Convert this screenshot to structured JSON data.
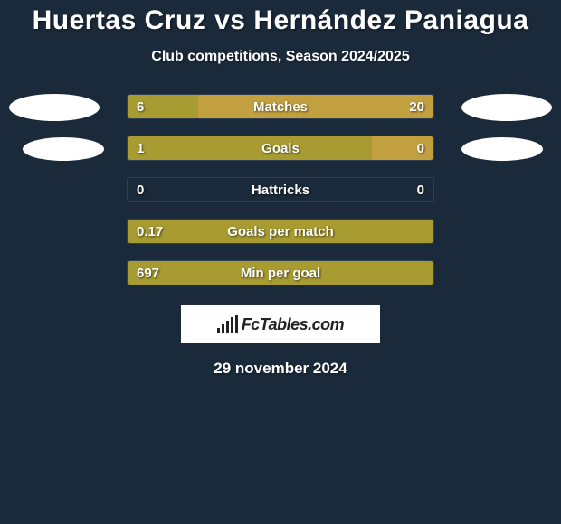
{
  "title": "Huertas Cruz vs Hernández Paniagua",
  "subtitle": "Club competitions, Season 2024/2025",
  "footer_date": "29 november 2024",
  "logo_text": "FcTables.com",
  "colors": {
    "background": "#1a2a3a",
    "bar_player1": "#a89b32",
    "bar_player2": "#c29f3f",
    "ellipse": "#ffffff",
    "text": "#ffffff"
  },
  "stat_rows": [
    {
      "label": "Matches",
      "left_val": "6",
      "right_val": "20",
      "left_pct": 23,
      "right_pct": 77,
      "left_color": "#a89b32",
      "right_color": "#c29f3f",
      "show_right_val": true
    },
    {
      "label": "Goals",
      "left_val": "1",
      "right_val": "0",
      "left_pct": 80,
      "right_pct": 20,
      "left_color": "#a89b32",
      "right_color": "#c29f3f",
      "show_right_val": true
    },
    {
      "label": "Hattricks",
      "left_val": "0",
      "right_val": "0",
      "left_pct": 0,
      "right_pct": 0,
      "left_color": "#a89b32",
      "right_color": "#c29f3f",
      "show_right_val": true
    },
    {
      "label": "Goals per match",
      "left_val": "0.17",
      "right_val": "",
      "left_pct": 100,
      "right_pct": 0,
      "left_color": "#a89b32",
      "right_color": "#c29f3f",
      "show_right_val": false
    },
    {
      "label": "Min per goal",
      "left_val": "697",
      "right_val": "",
      "left_pct": 100,
      "right_pct": 0,
      "left_color": "#a89b32",
      "right_color": "#c29f3f",
      "show_right_val": false
    }
  ]
}
